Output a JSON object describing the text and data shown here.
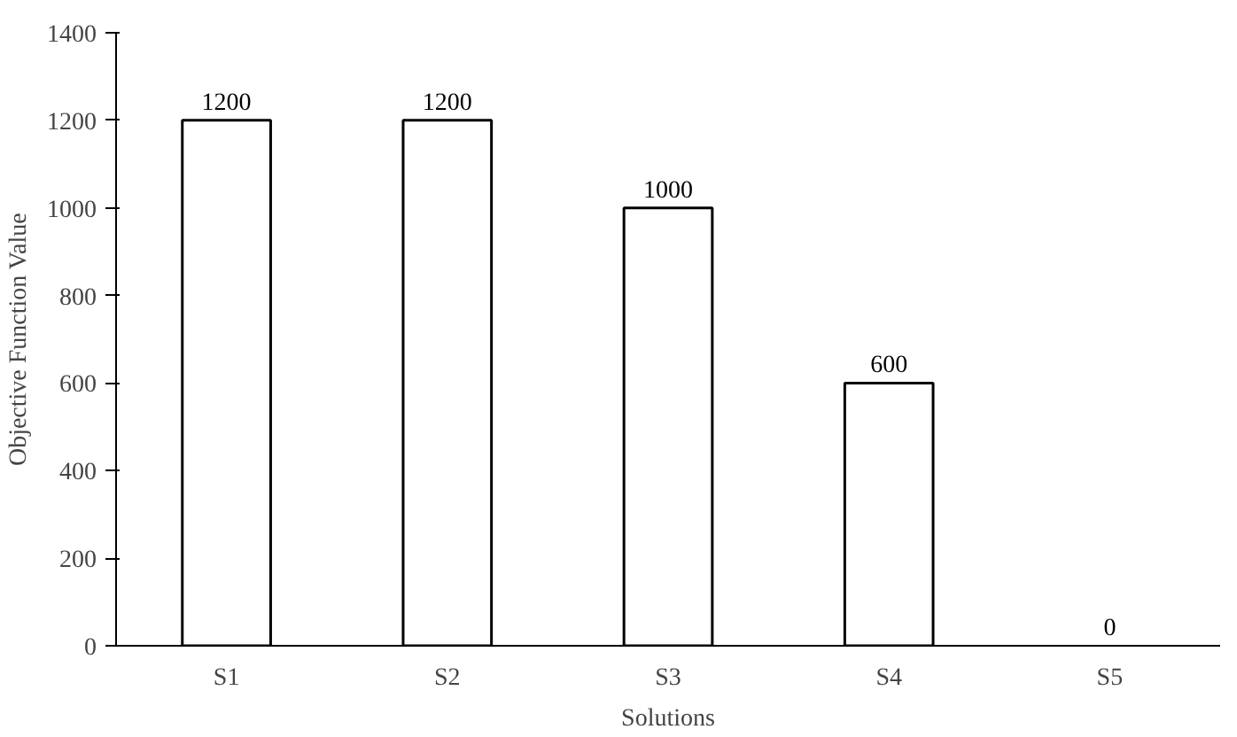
{
  "chart_data": {
    "type": "bar",
    "xlabel": "Solutions",
    "ylabel": "Objective Function Value",
    "categories": [
      "S1",
      "S2",
      "S3",
      "S4",
      "S5"
    ],
    "values": [
      1200,
      1200,
      1000,
      600,
      0
    ],
    "color": "#ffffff",
    "ylim": [
      0,
      1400
    ],
    "yticks": [
      0,
      200,
      400,
      600,
      800,
      1000,
      1200,
      1400
    ],
    "grid": false,
    "data_labels": true
  }
}
